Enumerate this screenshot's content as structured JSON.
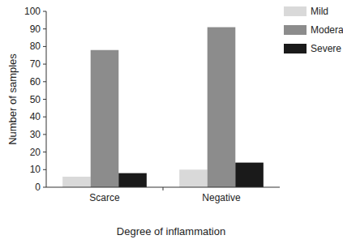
{
  "chart_data": {
    "type": "bar",
    "x_label": "Degree of inflammation",
    "y_label": "Number of samples",
    "categories": [
      "Scarce",
      "Negative"
    ],
    "series": [
      {
        "name": "Mild",
        "color": "#d9d9d9",
        "values": [
          6,
          10
        ]
      },
      {
        "name": "Moderate",
        "color": "#8c8c8c",
        "values": [
          78,
          91
        ]
      },
      {
        "name": "Severe",
        "color": "#1a1a1a",
        "values": [
          8,
          14
        ]
      }
    ],
    "ylim": [
      0,
      100
    ],
    "yticks": [
      0,
      10,
      20,
      30,
      40,
      50,
      60,
      70,
      80,
      90,
      100
    ],
    "grid": false,
    "legend": "top-right"
  }
}
